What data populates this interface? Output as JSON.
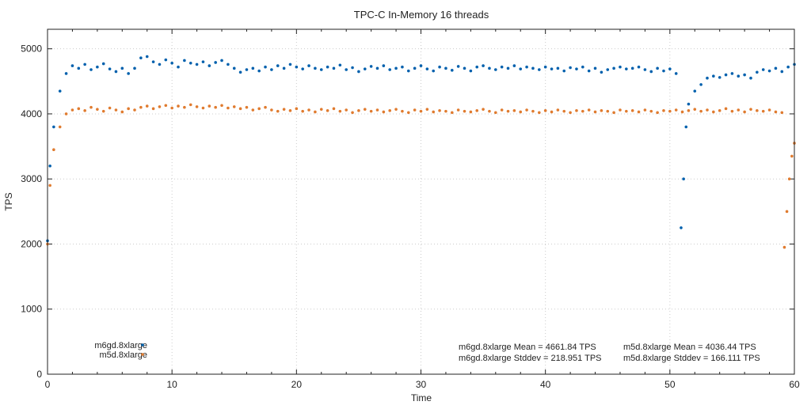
{
  "chart_data": {
    "type": "scatter",
    "title": "TPC-C In-Memory 16 threads",
    "xlabel": "Time",
    "ylabel": "TPS",
    "xlim": [
      0,
      60
    ],
    "ylim": [
      0,
      5300
    ],
    "xticks": [
      0,
      10,
      20,
      30,
      40,
      50,
      60
    ],
    "yticks": [
      0,
      1000,
      2000,
      3000,
      4000,
      5000
    ],
    "xtick_labels": [
      "0",
      "10",
      "20",
      "30",
      "40",
      "50",
      "60"
    ],
    "ytick_labels": [
      "0",
      "1000",
      "2000",
      "3000",
      "4000",
      "5000"
    ],
    "grid": true,
    "legend_position": "bottom-left",
    "series": [
      {
        "name": "m6gd.8xlarge",
        "color": "#0060ad",
        "points": [
          [
            0,
            2050
          ],
          [
            0.2,
            3200
          ],
          [
            0.5,
            3800
          ],
          [
            1,
            4350
          ],
          [
            1.5,
            4620
          ],
          [
            2,
            4740
          ],
          [
            2.5,
            4700
          ],
          [
            3,
            4760
          ],
          [
            3.5,
            4680
          ],
          [
            4,
            4720
          ],
          [
            4.5,
            4770
          ],
          [
            5,
            4690
          ],
          [
            5.5,
            4650
          ],
          [
            6,
            4700
          ],
          [
            6.5,
            4620
          ],
          [
            7,
            4700
          ],
          [
            7.5,
            4860
          ],
          [
            8,
            4880
          ],
          [
            8.5,
            4800
          ],
          [
            9,
            4760
          ],
          [
            9.5,
            4830
          ],
          [
            10,
            4780
          ],
          [
            10.5,
            4720
          ],
          [
            11,
            4820
          ],
          [
            11.5,
            4780
          ],
          [
            12,
            4760
          ],
          [
            12.5,
            4800
          ],
          [
            13,
            4740
          ],
          [
            13.5,
            4790
          ],
          [
            14,
            4820
          ],
          [
            14.5,
            4760
          ],
          [
            15,
            4700
          ],
          [
            15.5,
            4640
          ],
          [
            16,
            4680
          ],
          [
            16.5,
            4700
          ],
          [
            17,
            4660
          ],
          [
            17.5,
            4720
          ],
          [
            18,
            4680
          ],
          [
            18.5,
            4740
          ],
          [
            19,
            4700
          ],
          [
            19.5,
            4760
          ],
          [
            20,
            4720
          ],
          [
            20.5,
            4690
          ],
          [
            21,
            4740
          ],
          [
            21.5,
            4700
          ],
          [
            22,
            4680
          ],
          [
            22.5,
            4720
          ],
          [
            23,
            4700
          ],
          [
            23.5,
            4750
          ],
          [
            24,
            4680
          ],
          [
            24.5,
            4710
          ],
          [
            25,
            4650
          ],
          [
            25.5,
            4690
          ],
          [
            26,
            4730
          ],
          [
            26.5,
            4700
          ],
          [
            27,
            4740
          ],
          [
            27.5,
            4680
          ],
          [
            28,
            4700
          ],
          [
            28.5,
            4720
          ],
          [
            29,
            4660
          ],
          [
            29.5,
            4700
          ],
          [
            30,
            4740
          ],
          [
            30.5,
            4690
          ],
          [
            31,
            4660
          ],
          [
            31.5,
            4720
          ],
          [
            32,
            4700
          ],
          [
            32.5,
            4670
          ],
          [
            33,
            4730
          ],
          [
            33.5,
            4700
          ],
          [
            34,
            4660
          ],
          [
            34.5,
            4720
          ],
          [
            35,
            4740
          ],
          [
            35.5,
            4700
          ],
          [
            36,
            4680
          ],
          [
            36.5,
            4720
          ],
          [
            37,
            4700
          ],
          [
            37.5,
            4740
          ],
          [
            38,
            4690
          ],
          [
            38.5,
            4720
          ],
          [
            39,
            4700
          ],
          [
            39.5,
            4680
          ],
          [
            40,
            4720
          ],
          [
            40.5,
            4690
          ],
          [
            41,
            4700
          ],
          [
            41.5,
            4660
          ],
          [
            42,
            4710
          ],
          [
            42.5,
            4690
          ],
          [
            43,
            4720
          ],
          [
            43.5,
            4660
          ],
          [
            44,
            4700
          ],
          [
            44.5,
            4640
          ],
          [
            45,
            4680
          ],
          [
            45.5,
            4700
          ],
          [
            46,
            4720
          ],
          [
            46.5,
            4690
          ],
          [
            47,
            4700
          ],
          [
            47.5,
            4720
          ],
          [
            48,
            4680
          ],
          [
            48.5,
            4650
          ],
          [
            49,
            4700
          ],
          [
            49.5,
            4660
          ],
          [
            50,
            4690
          ],
          [
            50.5,
            4620
          ],
          [
            50.9,
            2250
          ],
          [
            51.1,
            3000
          ],
          [
            51.3,
            3800
          ],
          [
            51.5,
            4150
          ],
          [
            52,
            4350
          ],
          [
            52.5,
            4450
          ],
          [
            53,
            4550
          ],
          [
            53.5,
            4580
          ],
          [
            54,
            4560
          ],
          [
            54.5,
            4600
          ],
          [
            55,
            4620
          ],
          [
            55.5,
            4580
          ],
          [
            56,
            4600
          ],
          [
            56.5,
            4550
          ],
          [
            57,
            4640
          ],
          [
            57.5,
            4680
          ],
          [
            58,
            4660
          ],
          [
            58.5,
            4700
          ],
          [
            59,
            4650
          ],
          [
            59.5,
            4720
          ],
          [
            60,
            4760
          ]
        ]
      },
      {
        "name": "m5d.8xlarge",
        "color": "#e07b2f",
        "points": [
          [
            0,
            2000
          ],
          [
            0.2,
            2900
          ],
          [
            0.5,
            3450
          ],
          [
            1,
            3800
          ],
          [
            1.5,
            4000
          ],
          [
            2,
            4060
          ],
          [
            2.5,
            4080
          ],
          [
            3,
            4050
          ],
          [
            3.5,
            4100
          ],
          [
            4,
            4070
          ],
          [
            4.5,
            4040
          ],
          [
            5,
            4090
          ],
          [
            5.5,
            4060
          ],
          [
            6,
            4030
          ],
          [
            6.5,
            4080
          ],
          [
            7,
            4060
          ],
          [
            7.5,
            4100
          ],
          [
            8,
            4120
          ],
          [
            8.5,
            4080
          ],
          [
            9,
            4110
          ],
          [
            9.5,
            4130
          ],
          [
            10,
            4090
          ],
          [
            10.5,
            4120
          ],
          [
            11,
            4100
          ],
          [
            11.5,
            4140
          ],
          [
            12,
            4110
          ],
          [
            12.5,
            4090
          ],
          [
            13,
            4120
          ],
          [
            13.5,
            4100
          ],
          [
            14,
            4130
          ],
          [
            14.5,
            4090
          ],
          [
            15,
            4110
          ],
          [
            15.5,
            4080
          ],
          [
            16,
            4100
          ],
          [
            16.5,
            4060
          ],
          [
            17,
            4080
          ],
          [
            17.5,
            4100
          ],
          [
            18,
            4060
          ],
          [
            18.5,
            4040
          ],
          [
            19,
            4070
          ],
          [
            19.5,
            4050
          ],
          [
            20,
            4080
          ],
          [
            20.5,
            4040
          ],
          [
            21,
            4060
          ],
          [
            21.5,
            4030
          ],
          [
            22,
            4070
          ],
          [
            22.5,
            4050
          ],
          [
            23,
            4080
          ],
          [
            23.5,
            4040
          ],
          [
            24,
            4060
          ],
          [
            24.5,
            4020
          ],
          [
            25,
            4050
          ],
          [
            25.5,
            4070
          ],
          [
            26,
            4040
          ],
          [
            26.5,
            4060
          ],
          [
            27,
            4030
          ],
          [
            27.5,
            4050
          ],
          [
            28,
            4070
          ],
          [
            28.5,
            4040
          ],
          [
            29,
            4020
          ],
          [
            29.5,
            4060
          ],
          [
            30,
            4040
          ],
          [
            30.5,
            4070
          ],
          [
            31,
            4030
          ],
          [
            31.5,
            4050
          ],
          [
            32,
            4040
          ],
          [
            32.5,
            4020
          ],
          [
            33,
            4060
          ],
          [
            33.5,
            4040
          ],
          [
            34,
            4030
          ],
          [
            34.5,
            4050
          ],
          [
            35,
            4070
          ],
          [
            35.5,
            4040
          ],
          [
            36,
            4020
          ],
          [
            36.5,
            4060
          ],
          [
            37,
            4040
          ],
          [
            37.5,
            4050
          ],
          [
            38,
            4030
          ],
          [
            38.5,
            4060
          ],
          [
            39,
            4040
          ],
          [
            39.5,
            4020
          ],
          [
            40,
            4050
          ],
          [
            40.5,
            4030
          ],
          [
            41,
            4060
          ],
          [
            41.5,
            4040
          ],
          [
            42,
            4020
          ],
          [
            42.5,
            4050
          ],
          [
            43,
            4040
          ],
          [
            43.5,
            4060
          ],
          [
            44,
            4030
          ],
          [
            44.5,
            4050
          ],
          [
            45,
            4040
          ],
          [
            45.5,
            4020
          ],
          [
            46,
            4060
          ],
          [
            46.5,
            4040
          ],
          [
            47,
            4050
          ],
          [
            47.5,
            4030
          ],
          [
            48,
            4060
          ],
          [
            48.5,
            4040
          ],
          [
            49,
            4020
          ],
          [
            49.5,
            4050
          ],
          [
            50,
            4040
          ],
          [
            50.5,
            4060
          ],
          [
            51,
            4030
          ],
          [
            51.5,
            4050
          ],
          [
            52,
            4070
          ],
          [
            52.5,
            4040
          ],
          [
            53,
            4060
          ],
          [
            53.5,
            4030
          ],
          [
            54,
            4050
          ],
          [
            54.5,
            4080
          ],
          [
            55,
            4040
          ],
          [
            55.5,
            4060
          ],
          [
            56,
            4030
          ],
          [
            56.5,
            4070
          ],
          [
            57,
            4050
          ],
          [
            57.5,
            4040
          ],
          [
            58,
            4060
          ],
          [
            58.5,
            4030
          ],
          [
            59,
            4020
          ],
          [
            59.2,
            1950
          ],
          [
            59.4,
            2500
          ],
          [
            59.6,
            3000
          ],
          [
            59.8,
            3350
          ],
          [
            60,
            3550
          ]
        ]
      }
    ],
    "annotations": [
      "m6gd.8xlarge Mean = 4661.84 TPS",
      "m6gd.8xlarge Stddev = 218.951 TPS",
      "m5d.8xlarge Mean = 4036.44 TPS",
      "m5d.8xlarge Stddev = 166.111 TPS"
    ]
  }
}
